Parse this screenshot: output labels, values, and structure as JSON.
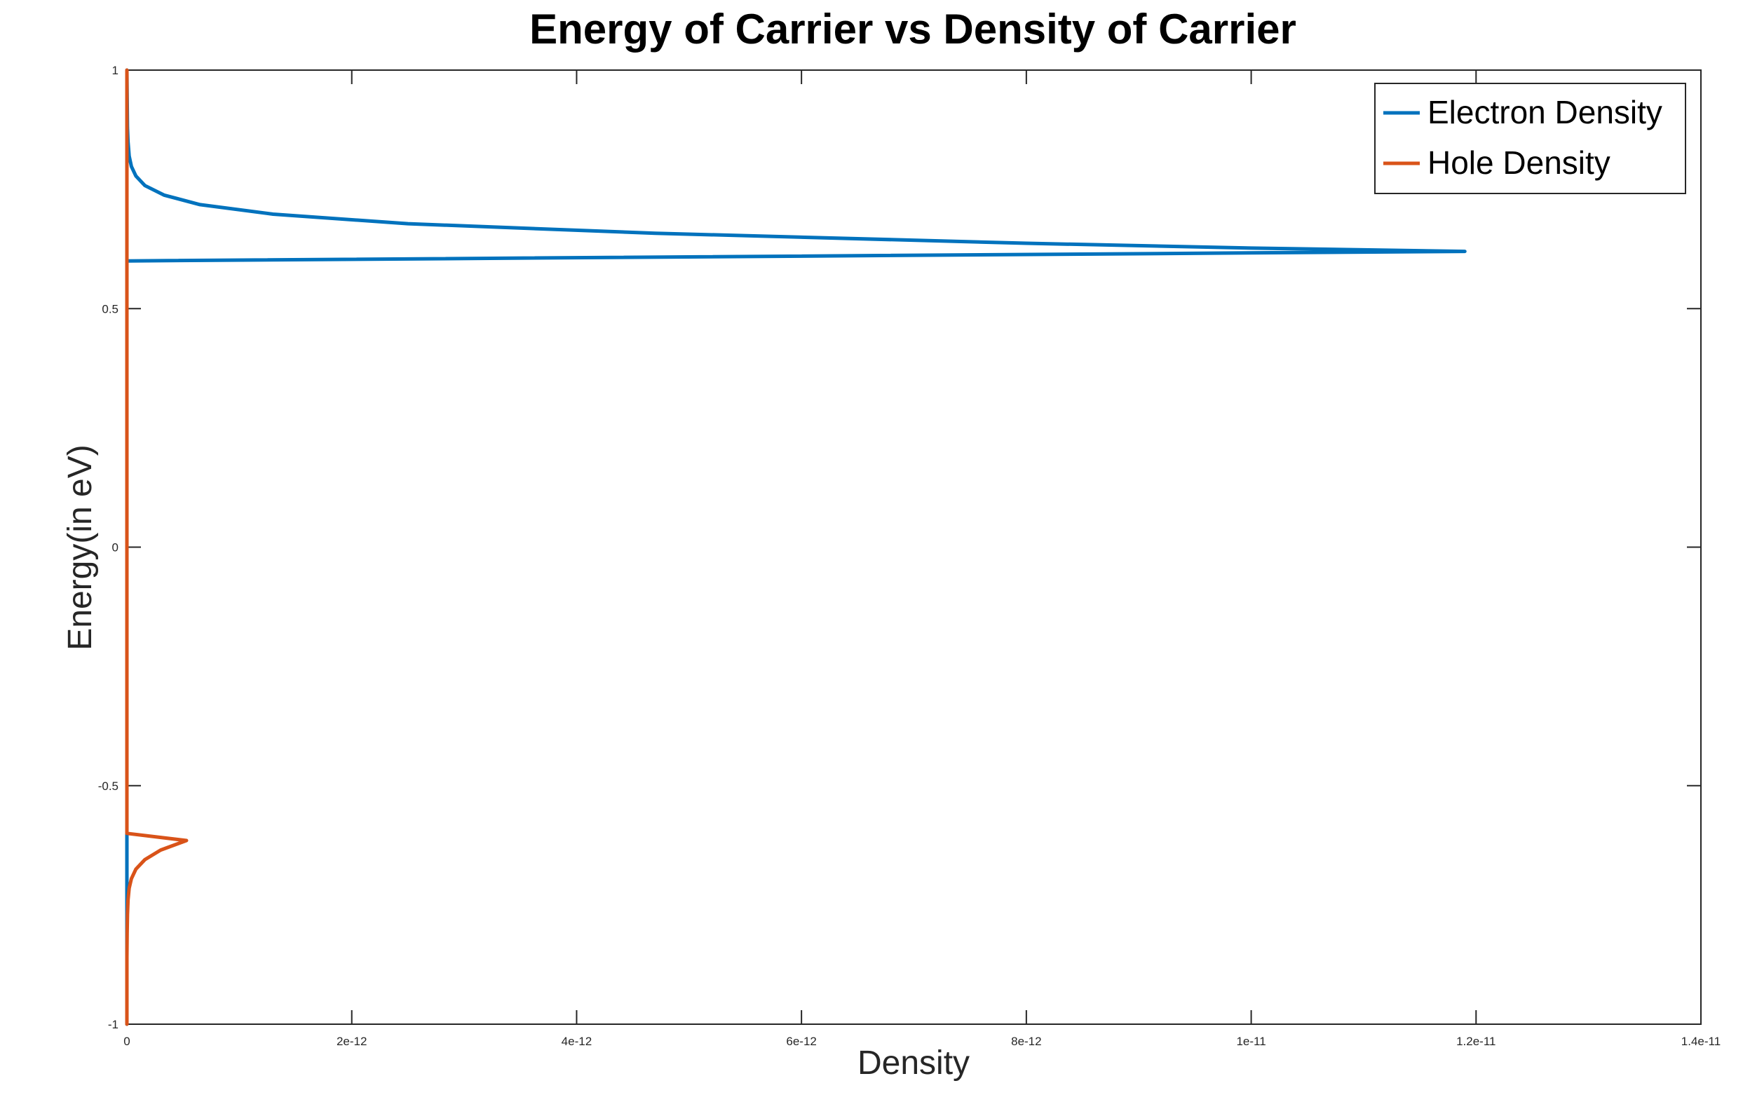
{
  "chart_data": {
    "type": "line",
    "title": "Energy of Carrier vs Density of Carrier",
    "xlabel": "Density",
    "ylabel": "Energy(in eV)",
    "xlim": [
      0,
      1.4e-11
    ],
    "ylim": [
      -1,
      1
    ],
    "x_ticks": [
      0,
      2e-12,
      4e-12,
      6e-12,
      8e-12,
      1e-11,
      1.2e-11,
      1.4e-11
    ],
    "x_tick_labels": [
      "0",
      "2e-12",
      "4e-12",
      "6e-12",
      "8e-12",
      "1e-11",
      "1.2e-11",
      "1.4e-11"
    ],
    "y_ticks": [
      -1,
      -0.5,
      0,
      0.5,
      1
    ],
    "y_tick_labels": [
      "-1",
      "-0.5",
      "0",
      "0.5",
      "1"
    ],
    "grid": false,
    "legend_position": "top-right",
    "series": [
      {
        "name": "Electron Density",
        "color": "#0072BD",
        "points": [
          [
            0,
            -1
          ],
          [
            0,
            0.6
          ],
          [
            1.19e-11,
            0.62
          ],
          [
            1e-11,
            0.627
          ],
          [
            8e-12,
            0.637
          ],
          [
            4.7e-12,
            0.658
          ],
          [
            2.5e-12,
            0.678
          ],
          [
            1.3e-12,
            0.698
          ],
          [
            6.5e-13,
            0.718
          ],
          [
            3.3e-13,
            0.738
          ],
          [
            1.6e-13,
            0.758
          ],
          [
            8e-14,
            0.778
          ],
          [
            4e-14,
            0.798
          ],
          [
            2e-14,
            0.82
          ],
          [
            1e-14,
            0.85
          ],
          [
            5e-15,
            0.88
          ],
          [
            0,
            1
          ]
        ]
      },
      {
        "name": "Hole Density",
        "color": "#D95319",
        "points": [
          [
            0,
            1
          ],
          [
            0,
            -0.6
          ],
          [
            5.3e-13,
            -0.615
          ],
          [
            3e-13,
            -0.635
          ],
          [
            1.6e-13,
            -0.655
          ],
          [
            8e-14,
            -0.675
          ],
          [
            4e-14,
            -0.695
          ],
          [
            2e-14,
            -0.715
          ],
          [
            1e-14,
            -0.74
          ],
          [
            5e-15,
            -0.77
          ],
          [
            2e-15,
            -0.81
          ],
          [
            0,
            -0.86
          ],
          [
            0,
            -1
          ]
        ]
      }
    ]
  }
}
